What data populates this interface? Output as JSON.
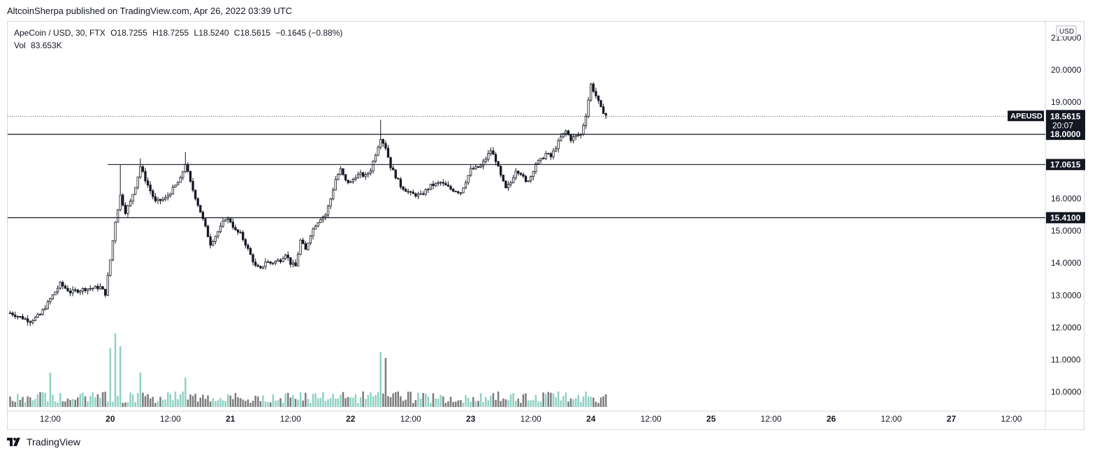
{
  "header": {
    "publisher_text": "AltcoinSherpa published on TradingView.com, Apr 26, 2022 03:39 UTC"
  },
  "legend": {
    "symbol_line": "ApeCoin / USD, 30, FTX",
    "open": "O18.7255",
    "high": "H18.7255",
    "low": "L18.5240",
    "close": "C18.5615",
    "change": "−0.1645 (−0.88%)",
    "volume_label": "Vol",
    "volume_value": "83.653K"
  },
  "footer": {
    "brand": "TradingView",
    "logo_icon": "tradingview-logo-icon"
  },
  "colors": {
    "up_candle_body": "#ffffff",
    "candle_border": "#131722",
    "volume_up": "#8fd1c4",
    "volume_down": "#7b7b7b",
    "level_line": "#131722",
    "price_tag_bg": "#131722",
    "price_tag_text": "#ffffff"
  },
  "chart_data": {
    "type": "candlestick",
    "price_axis": {
      "currency_button": "USD",
      "ticks": [
        {
          "value": 21,
          "label": "21.0000"
        },
        {
          "value": 20,
          "label": "20.0000"
        },
        {
          "value": 19,
          "label": "19.0000"
        },
        {
          "value": 16,
          "label": "16.0000"
        },
        {
          "value": 15,
          "label": "15.0000"
        },
        {
          "value": 14,
          "label": "14.0000"
        },
        {
          "value": 13,
          "label": "13.0000"
        },
        {
          "value": 12,
          "label": "12.0000"
        },
        {
          "value": 11,
          "label": "11.0000"
        },
        {
          "value": 10,
          "label": "10.0000"
        }
      ],
      "range": [
        9.4,
        21.5
      ]
    },
    "time_axis": {
      "ticks": [
        {
          "t": 12,
          "label": "12:00"
        },
        {
          "t": 24,
          "label": "20"
        },
        {
          "t": 36,
          "label": "12:00"
        },
        {
          "t": 48,
          "label": "21"
        },
        {
          "t": 60,
          "label": "12:00"
        },
        {
          "t": 72,
          "label": "22"
        },
        {
          "t": 84,
          "label": "12:00"
        },
        {
          "t": 96,
          "label": "23"
        },
        {
          "t": 108,
          "label": "12:00"
        },
        {
          "t": 120,
          "label": "24"
        },
        {
          "t": 132,
          "label": "12:00"
        },
        {
          "t": 144,
          "label": "25"
        },
        {
          "t": 156,
          "label": "12:00"
        },
        {
          "t": 168,
          "label": "26"
        },
        {
          "t": 180,
          "label": "12:00"
        },
        {
          "t": 192,
          "label": "27"
        },
        {
          "t": 204,
          "label": "12:00"
        }
      ],
      "range_hours": [
        3.5,
        210.5
      ]
    },
    "levels": [
      {
        "value": 18.0,
        "label": "18.0000",
        "start_t": 3.5
      },
      {
        "value": 17.0615,
        "label": "17.0615",
        "start_t": 23.5
      },
      {
        "value": 15.41,
        "label": "15.4100",
        "start_t": 3.5
      }
    ],
    "last_price": {
      "value": 18.5615,
      "symbol": "APEUSD",
      "price_label": "18.5615",
      "countdown": "20:07"
    },
    "ohlc_anchor_points": [
      [
        4,
        12.45
      ],
      [
        8,
        12.2
      ],
      [
        10,
        12.4
      ],
      [
        14,
        13.35
      ],
      [
        16,
        13.1
      ],
      [
        19,
        13.2
      ],
      [
        22,
        13.25
      ],
      [
        23,
        13.05
      ],
      [
        24,
        14.1
      ],
      [
        25,
        15.3
      ],
      [
        26,
        16.1
      ],
      [
        27,
        15.6
      ],
      [
        28,
        15.9
      ],
      [
        29,
        16.4
      ],
      [
        30,
        17.0
      ],
      [
        31,
        16.6
      ],
      [
        33,
        15.9
      ],
      [
        35,
        16.0
      ],
      [
        37,
        16.4
      ],
      [
        38,
        16.6
      ],
      [
        39,
        17.1
      ],
      [
        40,
        16.5
      ],
      [
        42,
        15.6
      ],
      [
        43,
        15.1
      ],
      [
        44,
        14.6
      ],
      [
        46,
        15.1
      ],
      [
        47,
        15.4
      ],
      [
        48,
        15.3
      ],
      [
        49,
        15.0
      ],
      [
        50,
        14.9
      ],
      [
        51,
        14.6
      ],
      [
        52,
        14.25
      ],
      [
        53,
        13.9
      ],
      [
        54,
        13.8
      ],
      [
        55,
        14.05
      ],
      [
        56,
        14.0
      ],
      [
        58,
        14.1
      ],
      [
        59,
        14.3
      ],
      [
        60,
        14.0
      ],
      [
        61,
        13.9
      ],
      [
        62,
        14.7
      ],
      [
        63,
        14.4
      ],
      [
        64,
        14.9
      ],
      [
        65,
        15.2
      ],
      [
        66,
        15.4
      ],
      [
        67,
        15.5
      ],
      [
        68,
        16.0
      ],
      [
        69,
        16.6
      ],
      [
        70,
        16.9
      ],
      [
        71,
        16.55
      ],
      [
        72,
        16.5
      ],
      [
        73,
        16.7
      ],
      [
        74,
        16.75
      ],
      [
        75,
        16.7
      ],
      [
        76,
        16.9
      ],
      [
        78,
        17.9
      ],
      [
        79,
        17.6
      ],
      [
        80,
        17.0
      ],
      [
        81,
        16.7
      ],
      [
        82,
        16.4
      ],
      [
        84,
        16.15
      ],
      [
        86,
        16.1
      ],
      [
        88,
        16.4
      ],
      [
        90,
        16.5
      ],
      [
        92,
        16.3
      ],
      [
        94,
        16.2
      ],
      [
        96,
        16.9
      ],
      [
        98,
        17.0
      ],
      [
        100,
        17.5
      ],
      [
        101,
        17.2
      ],
      [
        102,
        16.7
      ],
      [
        103,
        16.3
      ],
      [
        104,
        16.5
      ],
      [
        105,
        16.9
      ],
      [
        106,
        16.8
      ],
      [
        107,
        16.5
      ],
      [
        108,
        16.7
      ],
      [
        109,
        17.1
      ],
      [
        110,
        17.2
      ],
      [
        111,
        17.4
      ],
      [
        112,
        17.3
      ],
      [
        113,
        17.6
      ],
      [
        114,
        17.9
      ],
      [
        115,
        18.1
      ],
      [
        116,
        17.85
      ],
      [
        117,
        17.95
      ],
      [
        118,
        18.0
      ],
      [
        119,
        18.6
      ],
      [
        120,
        19.55
      ],
      [
        121,
        19.2
      ],
      [
        122,
        18.8
      ],
      [
        123,
        18.6
      ]
    ],
    "volume_axis_max": 14.4
  }
}
